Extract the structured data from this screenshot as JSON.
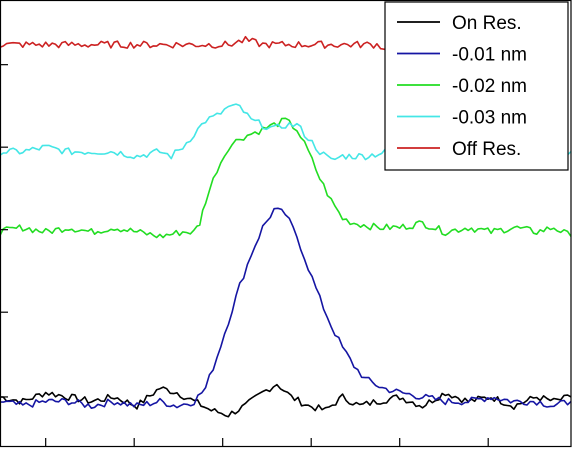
{
  "chart_data": {
    "type": "line",
    "title": "",
    "xlabel": "",
    "ylabel": "",
    "xlim": [
      0,
      100
    ],
    "ylim": [
      0,
      100
    ],
    "grid": false,
    "legend_position": "top-right",
    "x_ticks": [
      8,
      23.5,
      39,
      54.5,
      70,
      85.5
    ],
    "y_ticks": [
      11,
      30,
      48.5,
      67,
      85.5
    ],
    "series": [
      {
        "name": "On Res.",
        "color": "#000000",
        "points": [
          [
            0,
            11
          ],
          [
            4,
            10
          ],
          [
            8,
            12
          ],
          [
            12,
            11
          ],
          [
            16,
            10
          ],
          [
            20,
            11
          ],
          [
            24,
            9
          ],
          [
            28,
            13
          ],
          [
            31,
            12
          ],
          [
            34,
            10
          ],
          [
            37,
            8
          ],
          [
            40,
            7
          ],
          [
            43,
            9
          ],
          [
            46,
            12
          ],
          [
            48.5,
            14
          ],
          [
            51,
            11
          ],
          [
            54,
            9
          ],
          [
            57,
            8
          ],
          [
            60,
            11
          ],
          [
            63,
            9
          ],
          [
            66,
            10
          ],
          [
            70,
            11
          ],
          [
            74,
            9
          ],
          [
            78,
            12
          ],
          [
            82,
            10
          ],
          [
            86,
            11
          ],
          [
            90,
            9
          ],
          [
            94,
            11
          ],
          [
            97,
            10
          ],
          [
            100,
            11
          ]
        ]
      },
      {
        "name": "-0.01 nm",
        "color": "#1515a3",
        "points": [
          [
            0,
            10
          ],
          [
            4,
            9
          ],
          [
            8,
            10
          ],
          [
            12,
            10
          ],
          [
            16,
            9
          ],
          [
            20,
            10
          ],
          [
            24,
            9
          ],
          [
            28,
            10
          ],
          [
            31,
            9
          ],
          [
            34,
            10
          ],
          [
            36,
            13
          ],
          [
            38,
            20
          ],
          [
            40,
            28
          ],
          [
            42,
            36
          ],
          [
            44,
            43
          ],
          [
            46,
            49
          ],
          [
            48,
            53
          ],
          [
            50,
            52
          ],
          [
            52,
            47
          ],
          [
            54,
            40
          ],
          [
            56,
            33
          ],
          [
            58,
            27
          ],
          [
            60,
            22
          ],
          [
            62,
            18
          ],
          [
            64,
            15
          ],
          [
            67,
            13
          ],
          [
            70,
            12
          ],
          [
            74,
            11
          ],
          [
            78,
            10
          ],
          [
            82,
            10
          ],
          [
            86,
            11
          ],
          [
            90,
            10
          ],
          [
            94,
            10
          ],
          [
            97,
            9
          ],
          [
            100,
            10
          ]
        ]
      },
      {
        "name": "-0.02 nm",
        "color": "#22dd22",
        "points": [
          [
            0,
            48
          ],
          [
            4,
            49
          ],
          [
            8,
            48
          ],
          [
            12,
            49
          ],
          [
            16,
            48
          ],
          [
            20,
            49
          ],
          [
            24,
            48
          ],
          [
            28,
            47
          ],
          [
            32,
            48
          ],
          [
            34,
            48
          ],
          [
            35,
            50
          ],
          [
            36,
            55
          ],
          [
            38,
            62
          ],
          [
            40,
            67
          ],
          [
            42,
            69
          ],
          [
            44,
            70
          ],
          [
            46,
            71
          ],
          [
            48,
            72
          ],
          [
            50,
            73
          ],
          [
            52,
            71
          ],
          [
            54,
            66
          ],
          [
            56,
            60
          ],
          [
            58,
            55
          ],
          [
            60,
            51
          ],
          [
            62,
            50
          ],
          [
            66,
            49
          ],
          [
            70,
            49
          ],
          [
            74,
            50
          ],
          [
            78,
            48
          ],
          [
            82,
            49
          ],
          [
            86,
            48
          ],
          [
            90,
            49
          ],
          [
            94,
            48
          ],
          [
            97,
            49
          ],
          [
            100,
            47
          ]
        ]
      },
      {
        "name": "-0.03 nm",
        "color": "#44e6e6",
        "points": [
          [
            0,
            66
          ],
          [
            4,
            66
          ],
          [
            8,
            67
          ],
          [
            12,
            66
          ],
          [
            16,
            66
          ],
          [
            20,
            66
          ],
          [
            24,
            65
          ],
          [
            28,
            66
          ],
          [
            30,
            65
          ],
          [
            32,
            67
          ],
          [
            34,
            70
          ],
          [
            36,
            73
          ],
          [
            38,
            74
          ],
          [
            40,
            76
          ],
          [
            42,
            76
          ],
          [
            44,
            73
          ],
          [
            46,
            72
          ],
          [
            48,
            71
          ],
          [
            50,
            72
          ],
          [
            52,
            72
          ],
          [
            54,
            69
          ],
          [
            56,
            66
          ],
          [
            58,
            64
          ],
          [
            60,
            65
          ],
          [
            64,
            65
          ],
          [
            68,
            66
          ],
          [
            72,
            65
          ],
          [
            76,
            66
          ],
          [
            80,
            66
          ],
          [
            84,
            67
          ],
          [
            88,
            65
          ],
          [
            92,
            66
          ],
          [
            96,
            65
          ],
          [
            100,
            66
          ]
        ]
      },
      {
        "name": "Off Res.",
        "color": "#cc2222",
        "points": [
          [
            0,
            90
          ],
          [
            4,
            90
          ],
          [
            8,
            90
          ],
          [
            12,
            90
          ],
          [
            16,
            90
          ],
          [
            20,
            90
          ],
          [
            24,
            90
          ],
          [
            28,
            90
          ],
          [
            32,
            90
          ],
          [
            36,
            90
          ],
          [
            40,
            90
          ],
          [
            43,
            91
          ],
          [
            46,
            90
          ],
          [
            50,
            90
          ],
          [
            54,
            90
          ],
          [
            58,
            90
          ],
          [
            62,
            90
          ],
          [
            66,
            90
          ],
          [
            68,
            89
          ]
        ]
      }
    ]
  }
}
